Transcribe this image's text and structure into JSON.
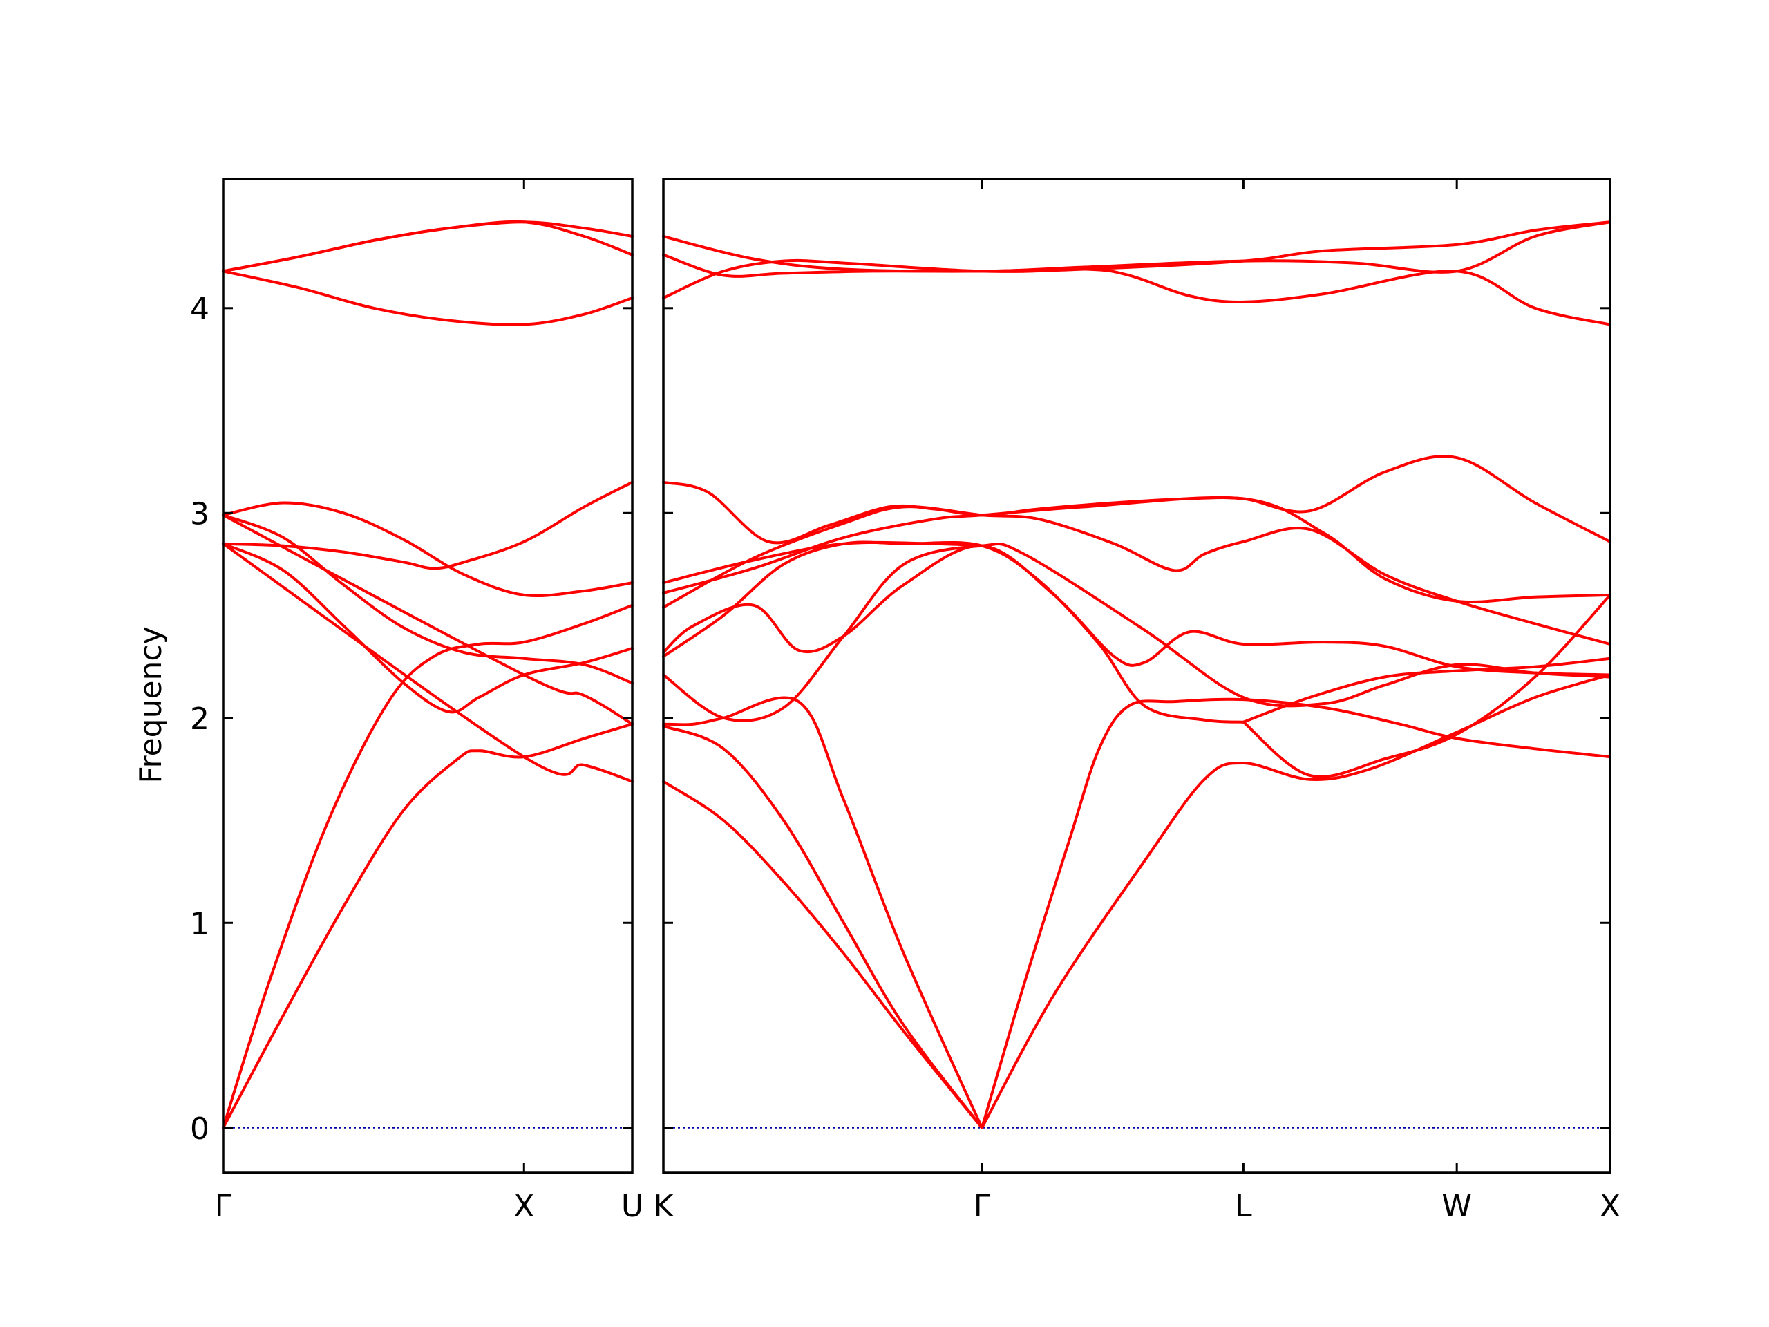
{
  "chart_data": {
    "type": "line",
    "title": "",
    "ylabel": "Frequency",
    "xlabel": "",
    "ylim": [
      -0.22,
      4.63
    ],
    "yticks": [
      0,
      1,
      2,
      3,
      4
    ],
    "grid": false,
    "legend": "none",
    "colors": {
      "band": "#ff0000",
      "zero": "#0000aa",
      "frame": "#000000"
    },
    "panels": [
      {
        "name": "left-panel",
        "xlim": [
          0,
          1.36
        ],
        "ticks": [
          {
            "x": 0,
            "label": "Γ"
          },
          {
            "x": 1.0,
            "label": "X"
          },
          {
            "x": 1.36,
            "label": "U"
          }
        ],
        "bands": [
          [
            [
              0,
              0
            ],
            [
              0.2,
              0.55
            ],
            [
              0.4,
              1.08
            ],
            [
              0.6,
              1.55
            ],
            [
              0.78,
              1.8
            ],
            [
              0.85,
              1.84
            ],
            [
              1.0,
              1.81
            ],
            [
              1.2,
              1.9
            ],
            [
              1.36,
              1.97
            ]
          ],
          [
            [
              0,
              0
            ],
            [
              0.15,
              0.7
            ],
            [
              0.35,
              1.5
            ],
            [
              0.55,
              2.08
            ],
            [
              0.7,
              2.3
            ],
            [
              0.85,
              2.36
            ],
            [
              1.0,
              2.37
            ],
            [
              1.2,
              2.46
            ],
            [
              1.36,
              2.55
            ]
          ],
          [
            [
              0,
              2.85
            ],
            [
              0.2,
              2.72
            ],
            [
              0.4,
              2.45
            ],
            [
              0.6,
              2.17
            ],
            [
              0.75,
              2.03
            ],
            [
              0.85,
              2.1
            ],
            [
              1.0,
              2.21
            ],
            [
              1.2,
              2.27
            ],
            [
              1.36,
              2.34
            ]
          ],
          [
            [
              0,
              2.85
            ],
            [
              0.2,
              2.84
            ],
            [
              0.4,
              2.81
            ],
            [
              0.6,
              2.76
            ],
            [
              0.7,
              2.73
            ],
            [
              0.8,
              2.76
            ],
            [
              1.0,
              2.86
            ],
            [
              1.2,
              3.03
            ],
            [
              1.36,
              3.15
            ]
          ],
          [
            [
              0,
              2.99
            ],
            [
              0.2,
              2.88
            ],
            [
              0.4,
              2.65
            ],
            [
              0.6,
              2.44
            ],
            [
              0.8,
              2.32
            ],
            [
              1.0,
              2.29
            ],
            [
              1.2,
              2.26
            ],
            [
              1.36,
              2.17
            ]
          ],
          [
            [
              0,
              2.99
            ],
            [
              0.2,
              3.05
            ],
            [
              0.4,
              3.0
            ],
            [
              0.6,
              2.87
            ],
            [
              0.8,
              2.7
            ],
            [
              1.0,
              2.6
            ],
            [
              1.2,
              2.62
            ],
            [
              1.36,
              2.66
            ]
          ],
          [
            [
              0,
              2.85
            ],
            [
              1.0,
              1.81
            ],
            [
              1.2,
              1.77
            ],
            [
              1.36,
              1.69
            ]
          ],
          [
            [
              0,
              2.99
            ],
            [
              1.0,
              2.21
            ],
            [
              1.2,
              2.11
            ],
            [
              1.36,
              1.97
            ]
          ],
          [
            [
              0,
              4.18
            ],
            [
              0.25,
              4.1
            ],
            [
              0.5,
              4.0
            ],
            [
              0.75,
              3.94
            ],
            [
              1.0,
              3.92
            ],
            [
              1.2,
              3.97
            ],
            [
              1.36,
              4.05
            ]
          ],
          [
            [
              0,
              4.18
            ],
            [
              0.25,
              4.25
            ],
            [
              0.5,
              4.33
            ],
            [
              0.75,
              4.39
            ],
            [
              1.0,
              4.42
            ],
            [
              1.2,
              4.39
            ],
            [
              1.36,
              4.35
            ]
          ],
          [
            [
              0,
              4.18
            ],
            [
              0.25,
              4.25
            ],
            [
              0.5,
              4.33
            ],
            [
              0.75,
              4.39
            ],
            [
              1.0,
              4.42
            ],
            [
              1.2,
              4.35
            ],
            [
              1.36,
              4.26
            ]
          ]
        ]
      },
      {
        "name": "right-panel",
        "xlim": [
          0,
          3.15
        ],
        "ticks": [
          {
            "x": 0,
            "label": "K"
          },
          {
            "x": 1.06,
            "label": "Γ"
          },
          {
            "x": 1.93,
            "label": "L"
          },
          {
            "x": 2.64,
            "label": "W"
          },
          {
            "x": 3.15,
            "label": "X"
          }
        ],
        "bands": [
          [
            [
              0,
              1.69
            ],
            [
              0.2,
              1.5
            ],
            [
              0.4,
              1.2
            ],
            [
              0.6,
              0.85
            ],
            [
              0.8,
              0.47
            ],
            [
              1.06,
              0
            ]
          ],
          [
            [
              0,
              1.96
            ],
            [
              0.2,
              1.85
            ],
            [
              0.4,
              1.5
            ],
            [
              0.6,
              1.0
            ],
            [
              0.8,
              0.5
            ],
            [
              1.06,
              0
            ]
          ],
          [
            [
              0,
              1.97
            ],
            [
              0.1,
              1.97
            ],
            [
              0.2,
              2.0
            ],
            [
              0.45,
              2.08
            ],
            [
              0.6,
              1.6
            ],
            [
              0.8,
              0.85
            ],
            [
              1.06,
              0
            ]
          ],
          [
            [
              1.06,
              0
            ],
            [
              1.2,
              0.7
            ],
            [
              1.35,
              1.4
            ],
            [
              1.45,
              1.85
            ],
            [
              1.55,
              2.06
            ],
            [
              1.7,
              2.08
            ],
            [
              1.93,
              2.09
            ],
            [
              2.2,
              2.05
            ],
            [
              2.45,
              1.97
            ],
            [
              2.64,
              1.9
            ],
            [
              2.9,
              1.85
            ],
            [
              3.15,
              1.81
            ]
          ],
          [
            [
              1.06,
              0
            ],
            [
              1.3,
              0.65
            ],
            [
              1.6,
              1.3
            ],
            [
              1.8,
              1.7
            ],
            [
              1.93,
              1.78
            ],
            [
              2.15,
              1.7
            ],
            [
              2.35,
              1.75
            ],
            [
              2.64,
              1.93
            ],
            [
              2.9,
              2.1
            ],
            [
              3.15,
              2.21
            ]
          ],
          [
            [
              1.93,
              1.98
            ],
            [
              2.15,
              2.1
            ],
            [
              2.4,
              2.2
            ],
            [
              2.64,
              2.23
            ],
            [
              2.9,
              2.25
            ],
            [
              3.15,
              2.29
            ]
          ],
          [
            [
              1.93,
              1.98
            ],
            [
              2.15,
              1.72
            ],
            [
              2.4,
              1.8
            ],
            [
              2.64,
              1.92
            ],
            [
              2.9,
              2.2
            ],
            [
              3.15,
              2.6
            ]
          ],
          [
            [
              0,
              2.3
            ],
            [
              0.2,
              2.5
            ],
            [
              0.4,
              2.75
            ],
            [
              0.6,
              2.85
            ],
            [
              0.8,
              2.85
            ],
            [
              1.06,
              2.84
            ],
            [
              1.25,
              2.67
            ],
            [
              1.45,
              2.36
            ],
            [
              1.6,
              2.06
            ],
            [
              1.8,
              1.99
            ],
            [
              1.93,
              1.98
            ]
          ],
          [
            [
              0,
              2.32
            ],
            [
              0.1,
              2.45
            ],
            [
              0.3,
              2.55
            ],
            [
              0.45,
              2.33
            ],
            [
              0.6,
              2.4
            ],
            [
              0.8,
              2.65
            ],
            [
              1.06,
              2.84
            ],
            [
              1.3,
              2.6
            ],
            [
              1.5,
              2.3
            ],
            [
              1.6,
              2.27
            ],
            [
              1.75,
              2.42
            ],
            [
              1.93,
              2.36
            ],
            [
              2.2,
              2.37
            ],
            [
              2.4,
              2.35
            ],
            [
              2.64,
              2.25
            ],
            [
              2.9,
              2.22
            ],
            [
              3.15,
              2.21
            ]
          ],
          [
            [
              0,
              2.21
            ],
            [
              0.2,
              2.0
            ],
            [
              0.4,
              2.05
            ],
            [
              0.6,
              2.4
            ],
            [
              0.8,
              2.75
            ],
            [
              1.06,
              2.84
            ],
            [
              1.2,
              2.8
            ],
            [
              1.6,
              2.43
            ],
            [
              1.93,
              2.1
            ],
            [
              2.2,
              2.07
            ],
            [
              2.4,
              2.16
            ],
            [
              2.64,
              2.26
            ],
            [
              2.9,
              2.22
            ],
            [
              3.15,
              2.2
            ]
          ],
          [
            [
              0,
              2.66
            ],
            [
              0.3,
              2.77
            ],
            [
              0.6,
              2.85
            ],
            [
              0.9,
              2.85
            ],
            [
              1.06,
              2.84
            ]
          ],
          [
            [
              0,
              2.54
            ],
            [
              0.3,
              2.78
            ],
            [
              0.6,
              2.95
            ],
            [
              0.8,
              3.03
            ],
            [
              1.06,
              2.99
            ],
            [
              1.25,
              2.97
            ],
            [
              1.5,
              2.85
            ],
            [
              1.7,
              2.72
            ],
            [
              1.8,
              2.8
            ],
            [
              1.93,
              2.86
            ],
            [
              2.15,
              2.92
            ],
            [
              2.4,
              2.7
            ],
            [
              2.64,
              2.57
            ],
            [
              2.9,
              2.46
            ],
            [
              3.15,
              2.36
            ]
          ],
          [
            [
              0,
              3.15
            ],
            [
              0.15,
              3.1
            ],
            [
              0.35,
              2.86
            ],
            [
              0.55,
              2.94
            ],
            [
              0.75,
              3.03
            ],
            [
              0.9,
              3.02
            ],
            [
              1.06,
              2.99
            ],
            [
              1.25,
              3.02
            ],
            [
              1.5,
              3.05
            ],
            [
              1.75,
              3.07
            ],
            [
              1.93,
              3.07
            ],
            [
              2.15,
              3.01
            ],
            [
              2.4,
              3.2
            ],
            [
              2.64,
              3.27
            ],
            [
              2.9,
              3.05
            ],
            [
              3.15,
              2.86
            ]
          ],
          [
            [
              0,
              2.61
            ],
            [
              0.3,
              2.73
            ],
            [
              0.6,
              2.88
            ],
            [
              0.9,
              2.97
            ],
            [
              1.06,
              2.99
            ],
            [
              1.4,
              3.03
            ],
            [
              1.93,
              3.07
            ],
            [
              2.2,
              2.9
            ],
            [
              2.4,
              2.68
            ],
            [
              2.64,
              2.57
            ],
            [
              2.9,
              2.59
            ],
            [
              3.15,
              2.6
            ]
          ],
          [
            [
              0,
              4.05
            ],
            [
              0.2,
              4.18
            ],
            [
              0.4,
              4.23
            ],
            [
              0.6,
              4.22
            ],
            [
              1.06,
              4.18
            ],
            [
              1.4,
              4.19
            ],
            [
              1.93,
              4.23
            ],
            [
              2.2,
              4.28
            ],
            [
              2.64,
              4.31
            ],
            [
              2.9,
              4.38
            ],
            [
              3.15,
              4.42
            ]
          ],
          [
            [
              0,
              4.26
            ],
            [
              0.2,
              4.16
            ],
            [
              0.4,
              4.17
            ],
            [
              0.7,
              4.18
            ],
            [
              1.06,
              4.18
            ],
            [
              1.4,
              4.19
            ],
            [
              1.55,
              4.16
            ],
            [
              1.75,
              4.06
            ],
            [
              1.93,
              4.03
            ],
            [
              2.2,
              4.07
            ],
            [
              2.64,
              4.18
            ],
            [
              2.9,
              4.0
            ],
            [
              3.15,
              3.92
            ]
          ],
          [
            [
              0,
              4.35
            ],
            [
              0.3,
              4.24
            ],
            [
              0.6,
              4.19
            ],
            [
              1.06,
              4.18
            ],
            [
              1.4,
              4.2
            ],
            [
              1.93,
              4.23
            ],
            [
              2.3,
              4.22
            ],
            [
              2.64,
              4.18
            ],
            [
              2.9,
              4.35
            ],
            [
              3.15,
              4.42
            ]
          ]
        ]
      }
    ]
  }
}
